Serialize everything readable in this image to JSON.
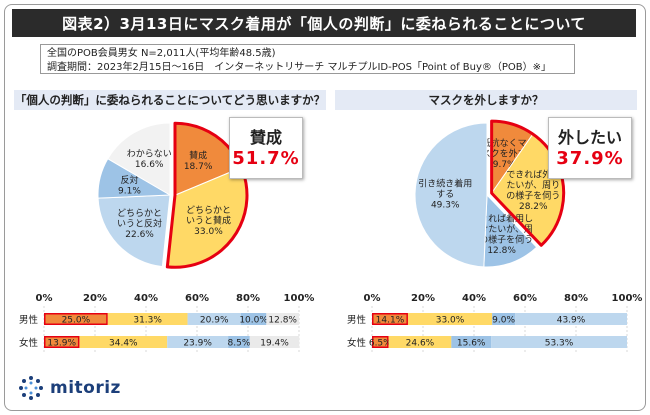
{
  "title": "図表2）3月13日にマスク着用が「個人の判断」に委ねられることについて",
  "info_lines": [
    "全国のPOB会員男女 N=2,011人(平均年齢48.5歳)",
    "調査期間：2023年2月15日～16日　インターネットリサーチ マルチプルID-POS「Point of Buy®（POB）※」"
  ],
  "colors": {
    "orange": "#f08a3c",
    "yellow": "#ffd966",
    "blue_mid": "#9dc3e6",
    "blue_light": "#bdd7ee",
    "gray": "#eaeaea",
    "highlight": "#e60012"
  },
  "chart_data": [
    {
      "type": "pie",
      "title": "「個人の判断」に委ねられることについてどう思いますか？",
      "slices": [
        {
          "label": "賛成",
          "value": 18.7,
          "color": "#f08a3c",
          "lines": [
            "賛成",
            "18.7%"
          ]
        },
        {
          "label": "どちらかというと賛成",
          "value": 33.0,
          "color": "#ffd966",
          "lines": [
            "どちらかと",
            "いうと賛成",
            "33.0%"
          ]
        },
        {
          "label": "どちらかというと反対",
          "value": 22.6,
          "color": "#bdd7ee",
          "lines": [
            "どちらかと",
            "いうと反対",
            "22.6%"
          ]
        },
        {
          "label": "反対",
          "value": 9.1,
          "color": "#9dc3e6",
          "lines": [
            "反対",
            "9.1%"
          ]
        },
        {
          "label": "わからない",
          "value": 16.6,
          "color": "#f2f2f2",
          "lines": [
            "わからない",
            "16.6%"
          ]
        }
      ],
      "callout": {
        "label": "賛成",
        "value": "51.7%"
      }
    },
    {
      "type": "pie",
      "title": "マスクを外しますか？",
      "slices": [
        {
          "label": "抵抗なくマスクを外す",
          "value": 9.7,
          "color": "#f08a3c",
          "lines": [
            "抵抗なくマ",
            "スクを外す",
            "9.7%"
          ]
        },
        {
          "label": "できれば外したいが、周りの様子を伺う",
          "value": 28.2,
          "color": "#ffd966",
          "lines": [
            "できれば外し",
            "たいが、周り",
            "の様子を伺う",
            "28.2%"
          ]
        },
        {
          "label": "できれば着用し続けたいが、周りの様子を伺う",
          "value": 12.8,
          "color": "#9dc3e6",
          "lines": [
            "できれば着用し",
            "続けたいが、周",
            "りの様子を伺う",
            "12.8%"
          ]
        },
        {
          "label": "引き続き着用する",
          "value": 49.3,
          "color": "#bdd7ee",
          "lines": [
            "引き続き着用",
            "する",
            "49.3%"
          ]
        }
      ],
      "callout": {
        "label": "外したい",
        "value": "37.9%"
      }
    },
    {
      "type": "bar",
      "orientation": "horizontal-stacked",
      "categories": [
        "男性",
        "女性"
      ],
      "xlim": [
        0,
        100
      ],
      "ticks": [
        "0%",
        "20%",
        "40%",
        "60%",
        "80%",
        "100%"
      ],
      "series": [
        {
          "name": "賛成",
          "values": [
            25.0,
            13.9
          ]
        },
        {
          "name": "どちらかというと賛成",
          "values": [
            31.3,
            34.4
          ]
        },
        {
          "name": "どちらかというと反対",
          "values": [
            20.9,
            23.9
          ]
        },
        {
          "name": "反対",
          "values": [
            10.0,
            8.5
          ]
        },
        {
          "name": "わからない",
          "values": [
            12.8,
            19.4
          ]
        }
      ],
      "colors": [
        "#f08a3c",
        "#ffd966",
        "#bdd7ee",
        "#9dc3e6",
        "#eaeaea"
      ]
    },
    {
      "type": "bar",
      "orientation": "horizontal-stacked",
      "categories": [
        "男性",
        "女性"
      ],
      "xlim": [
        0,
        100
      ],
      "ticks": [
        "0%",
        "20%",
        "40%",
        "60%",
        "80%",
        "100%"
      ],
      "series": [
        {
          "name": "抵抗なくマスクを外す",
          "values": [
            14.1,
            6.5
          ]
        },
        {
          "name": "できれば外したいが、周りの様子を伺う",
          "values": [
            33.0,
            24.6
          ]
        },
        {
          "name": "できれば着用し続けたいが、周りの様子を伺う",
          "values": [
            9.0,
            15.6
          ]
        },
        {
          "name": "引き続き着用する",
          "values": [
            43.9,
            53.3
          ]
        }
      ],
      "colors": [
        "#f08a3c",
        "#ffd966",
        "#9dc3e6",
        "#bdd7ee"
      ]
    }
  ],
  "logo": {
    "text": "mitoriz",
    "icon": "dotted-circle-icon"
  }
}
